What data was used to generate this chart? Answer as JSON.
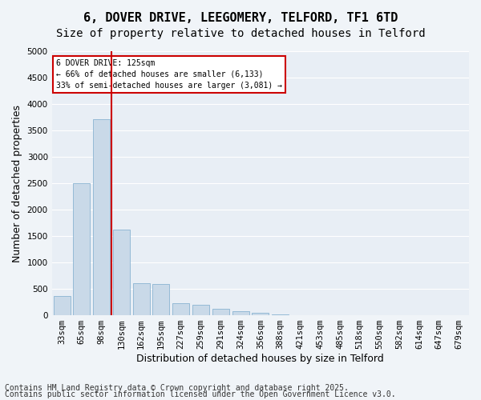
{
  "title_line1": "6, DOVER DRIVE, LEEGOMERY, TELFORD, TF1 6TD",
  "title_line2": "Size of property relative to detached houses in Telford",
  "xlabel": "Distribution of detached houses by size in Telford",
  "ylabel": "Number of detached properties",
  "categories": [
    "33sqm",
    "65sqm",
    "98sqm",
    "130sqm",
    "162sqm",
    "195sqm",
    "227sqm",
    "259sqm",
    "291sqm",
    "324sqm",
    "356sqm",
    "388sqm",
    "421sqm",
    "453sqm",
    "485sqm",
    "518sqm",
    "550sqm",
    "582sqm",
    "614sqm",
    "647sqm",
    "679sqm"
  ],
  "values": [
    370,
    2500,
    3720,
    1620,
    600,
    590,
    230,
    200,
    125,
    75,
    45,
    15,
    5,
    3,
    2,
    1,
    1,
    0,
    0,
    0,
    0
  ],
  "bar_color": "#c9d9e8",
  "bar_edge_color": "#7aaacc",
  "vline_x": 3,
  "vline_color": "#cc0000",
  "annotation_title": "6 DOVER DRIVE: 125sqm",
  "annotation_line2": "← 66% of detached houses are smaller (6,133)",
  "annotation_line3": "33% of semi-detached houses are larger (3,081) →",
  "annotation_box_color": "#cc0000",
  "annotation_bg": "#ffffff",
  "ylim": [
    0,
    5000
  ],
  "yticks": [
    0,
    500,
    1000,
    1500,
    2000,
    2500,
    3000,
    3500,
    4000,
    4500,
    5000
  ],
  "footnote_line1": "Contains HM Land Registry data © Crown copyright and database right 2025.",
  "footnote_line2": "Contains public sector information licensed under the Open Government Licence v3.0.",
  "background_color": "#e8eef5",
  "grid_color": "#ffffff",
  "title_fontsize": 11,
  "subtitle_fontsize": 10,
  "axis_label_fontsize": 9,
  "tick_fontsize": 7.5,
  "footnote_fontsize": 7
}
